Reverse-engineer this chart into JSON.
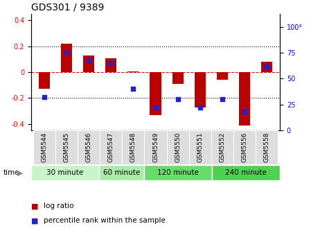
{
  "title": "GDS301 / 9389",
  "samples": [
    "GSM5544",
    "GSM5545",
    "GSM5546",
    "GSM5547",
    "GSM5548",
    "GSM5549",
    "GSM5550",
    "GSM5551",
    "GSM5552",
    "GSM5556",
    "GSM5558"
  ],
  "log_ratio": [
    -0.13,
    0.22,
    0.13,
    0.11,
    0.005,
    -0.33,
    -0.09,
    -0.27,
    -0.06,
    -0.41,
    0.08
  ],
  "percentile": [
    32,
    75,
    68,
    65,
    40,
    22,
    30,
    22,
    30,
    18,
    62
  ],
  "groups": [
    {
      "label": "30 minute",
      "start": 0,
      "end": 3,
      "color": "#c8f5c8"
    },
    {
      "label": "60 minute",
      "start": 3,
      "end": 5,
      "color": "#a8eca8"
    },
    {
      "label": "120 minute",
      "start": 5,
      "end": 8,
      "color": "#68dc68"
    },
    {
      "label": "240 minute",
      "start": 8,
      "end": 11,
      "color": "#50d050"
    }
  ],
  "bar_color": "#bb0000",
  "dot_color": "#2222cc",
  "ylim_left": [
    -0.45,
    0.45
  ],
  "ylim_right": [
    0,
    112.5
  ],
  "yticks_left": [
    -0.4,
    -0.2,
    0.0,
    0.2,
    0.4
  ],
  "yticks_right": [
    0,
    25,
    50,
    75,
    100
  ],
  "bg_color": "#ffffff",
  "bar_width": 0.5
}
